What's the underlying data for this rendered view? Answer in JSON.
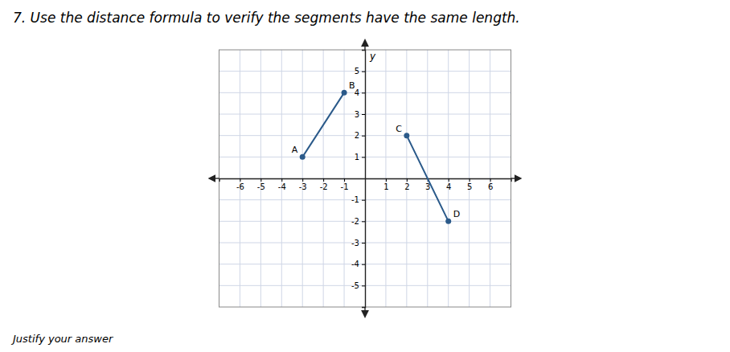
{
  "chart_data": {
    "type": "line",
    "title": "7.  Use the distance formula to verify the segments have the same length.",
    "subtitle": "Justify your answer",
    "y_label": "y",
    "marker": "circle",
    "series": [
      {
        "x": [
          -3,
          -1
        ],
        "values": [
          1,
          4
        ],
        "labels": [
          "A",
          "B"
        ],
        "color": "#2b5a8a"
      },
      {
        "x": [
          2,
          4
        ],
        "values": [
          2,
          -2
        ],
        "labels": [
          "C",
          "D"
        ],
        "color": "#2b5a8a"
      }
    ],
    "xlim": [
      -7,
      7
    ],
    "ylim": [
      -6,
      6
    ],
    "xticks": [
      -6,
      -5,
      -4,
      -3,
      -2,
      -1,
      1,
      2,
      3,
      4,
      5,
      6
    ],
    "yticks": [
      -5,
      -4,
      -3,
      -2,
      -1,
      1,
      2,
      3,
      4,
      5
    ],
    "grid": true
  }
}
